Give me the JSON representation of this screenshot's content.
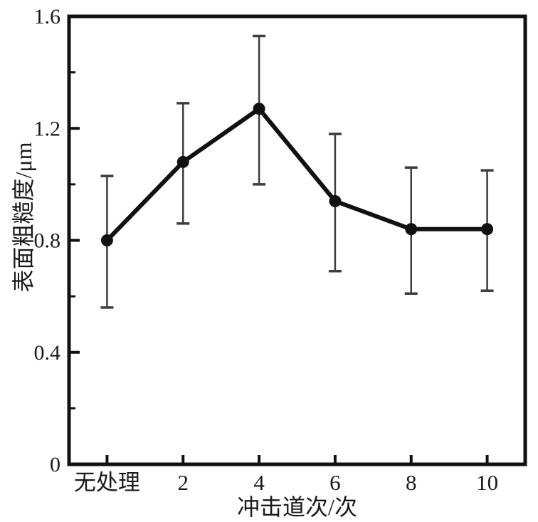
{
  "figure": {
    "background": "#ffffff",
    "frame_color": "#111111",
    "line_color": "#111111",
    "marker_color": "#111111",
    "errorbar_color": "#3d3d3d",
    "text_color": "#1a1a1a"
  },
  "chart_data": {
    "type": "line",
    "title": "",
    "xlabel": "冲击道次/次",
    "ylabel": "表面粗糙度/μm",
    "categories": [
      "无处理",
      "2",
      "4",
      "6",
      "8",
      "10"
    ],
    "series": [
      {
        "name": "表面粗糙度",
        "values": [
          0.8,
          1.08,
          1.27,
          0.94,
          0.84,
          0.84
        ],
        "error_low": [
          0.56,
          0.86,
          1.0,
          0.69,
          0.61,
          0.62
        ],
        "error_high": [
          1.03,
          1.29,
          1.53,
          1.18,
          1.06,
          1.05
        ]
      }
    ],
    "ylim": [
      0,
      1.6
    ],
    "y_major_ticks": [
      0,
      0.4,
      0.8,
      1.2,
      1.6
    ],
    "y_major_tick_labels": [
      "0",
      "0.4",
      "0.8",
      "1.2",
      "1.6"
    ],
    "y_minor_ticks": [
      0.2,
      0.6,
      1.0,
      1.4
    ],
    "grid": false,
    "legend": "none",
    "marker": "filled-circle",
    "errorbars": true
  }
}
